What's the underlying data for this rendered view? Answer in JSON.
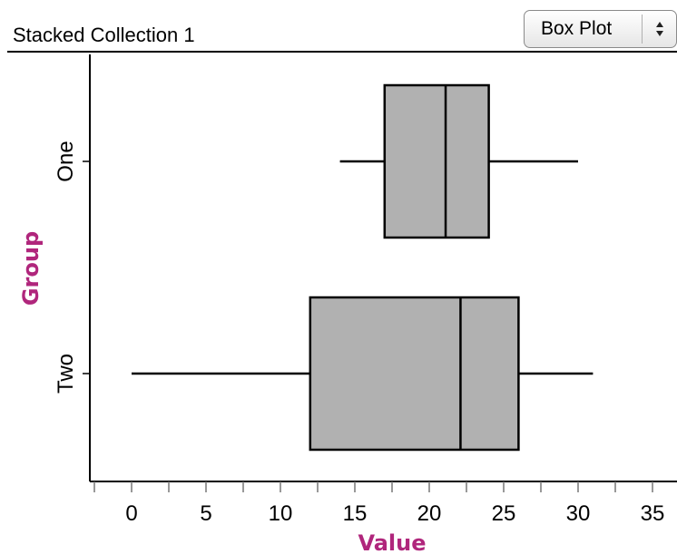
{
  "header": {
    "title": "Stacked Collection 1",
    "plot_type_selector": {
      "selected": "Box Plot",
      "icon": "up-down-chevron-icon"
    }
  },
  "chart_data": {
    "type": "boxplot",
    "xlabel": "Value",
    "ylabel": "Group",
    "axis_title_color": "#b0267c",
    "box_fill": "#b1b1b1",
    "xlim": [
      -2.5,
      36.5
    ],
    "xticks": [
      0,
      5,
      10,
      15,
      20,
      25,
      30,
      35
    ],
    "xtick_labels": [
      "0",
      "5",
      "10",
      "15",
      "20",
      "25",
      "30",
      "35"
    ],
    "minor_ticks": true,
    "grid": false,
    "categories": [
      "One",
      "Two"
    ],
    "series": [
      {
        "category": "One",
        "min": 14,
        "q1": 17,
        "median": 21.1,
        "q3": 24,
        "max": 30
      },
      {
        "category": "Two",
        "min": 0,
        "q1": 12,
        "median": 22.1,
        "q3": 26,
        "max": 31
      }
    ]
  }
}
